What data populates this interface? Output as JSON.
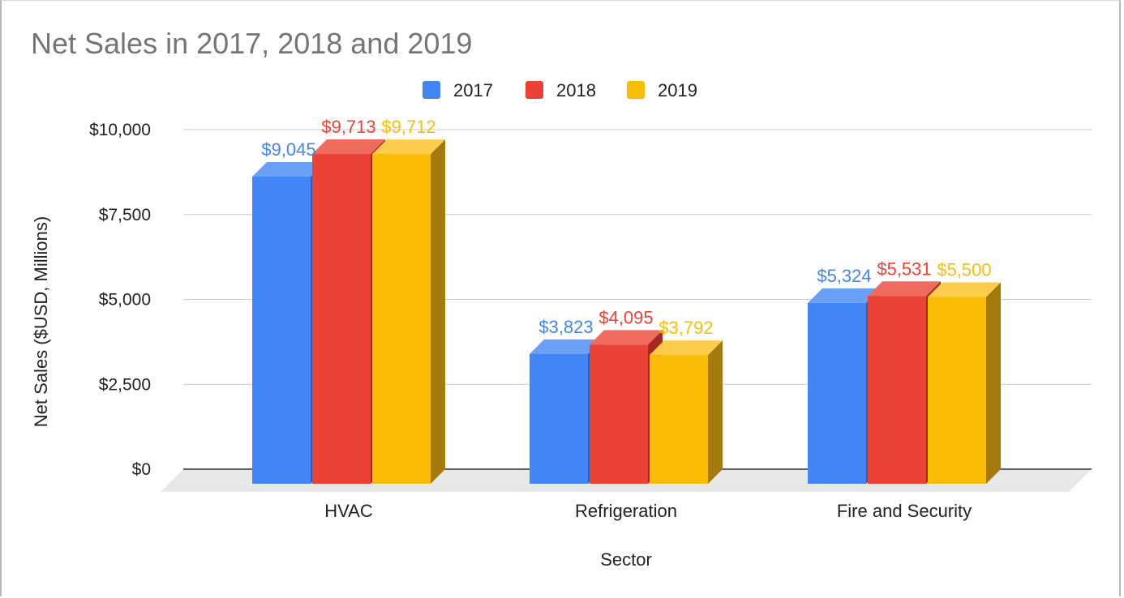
{
  "chart_data": {
    "type": "bar",
    "title": "Net Sales in 2017, 2018 and 2019",
    "xlabel": "Sector",
    "ylabel": "Net Sales ($USD, Millions)",
    "categories": [
      "HVAC",
      "Refrigeration",
      "Fire and Security"
    ],
    "series": [
      {
        "name": "2017",
        "values": [
          9045,
          3823,
          5324
        ],
        "labels": [
          "$9,045",
          "$3,823",
          "$5,324"
        ],
        "color": "#4285f4",
        "side_color": "#2a5fb8",
        "top_color": "#6aa0f7"
      },
      {
        "name": "2018",
        "values": [
          9713,
          4095,
          5531
        ],
        "labels": [
          "$9,713",
          "$4,095",
          "$5,531"
        ],
        "color": "#ea4335",
        "side_color": "#a52a20",
        "top_color": "#ef6b60"
      },
      {
        "name": "2019",
        "values": [
          9712,
          3792,
          5500
        ],
        "labels": [
          "$9,712",
          "$3,792",
          "$5,500"
        ],
        "color": "#fbbc04",
        "side_color": "#a4790e",
        "top_color": "#fccd4d"
      }
    ],
    "yticks": [
      0,
      2500,
      5000,
      7500,
      10000
    ],
    "ytick_labels": [
      "$0",
      "$2,500",
      "$5,000",
      "$7,500",
      "$10,000"
    ],
    "ylim": [
      0,
      10000
    ],
    "grid": true,
    "legend_position": "top",
    "style": "3d"
  },
  "colors": {
    "gridline": "#cccccc",
    "baseline": "#333333",
    "floor": "#e8e8e8",
    "title": "#757575"
  }
}
